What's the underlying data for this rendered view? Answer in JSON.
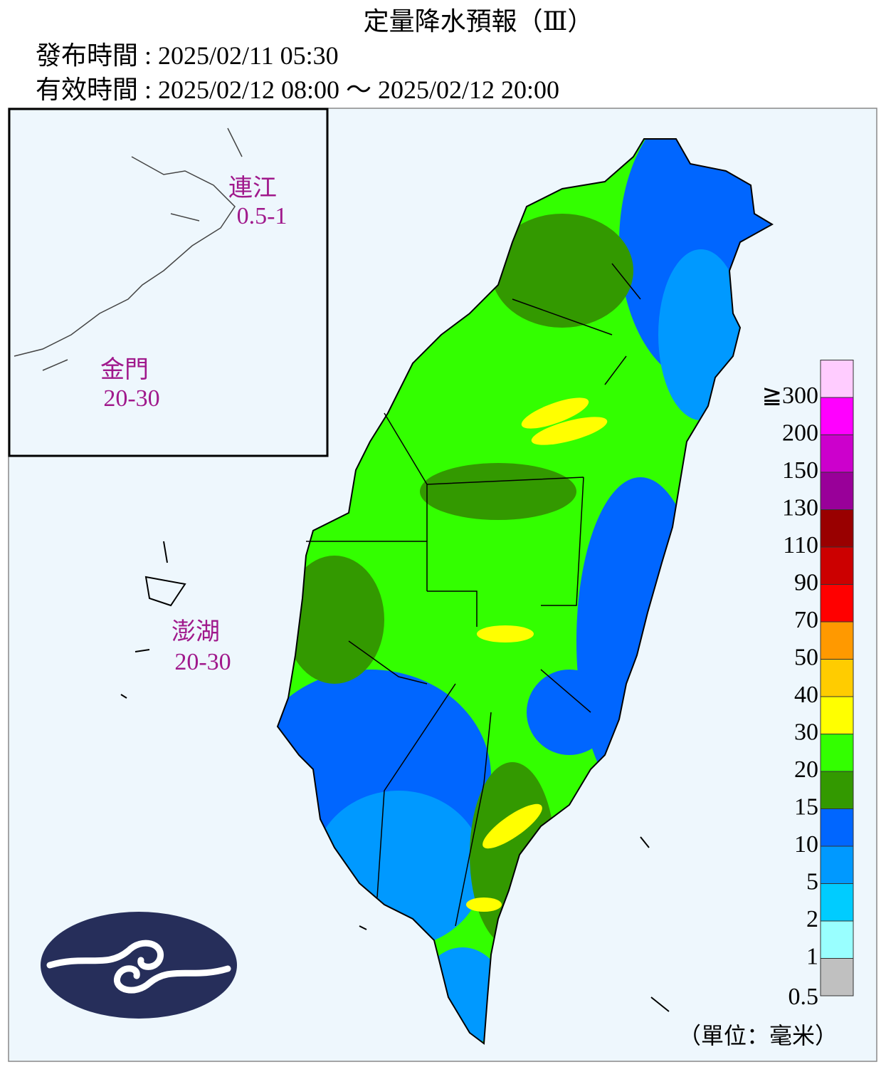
{
  "header": {
    "title": "定量降水預報（Ⅲ）",
    "issue_time": "發布時間 : 2025/02/11 05:30",
    "valid_time": "有效時間 : 2025/02/12 08:00 ～ 2025/02/12 20:00"
  },
  "inset": {
    "labels": [
      {
        "name": "連江",
        "value": "0.5-1"
      },
      {
        "name": "金門",
        "value": "20-30"
      }
    ]
  },
  "map": {
    "labels": [
      {
        "name": "澎湖",
        "value": "20-30"
      }
    ]
  },
  "legend": {
    "labels": [
      0.5,
      1,
      2,
      5,
      10,
      15,
      20,
      30,
      40,
      50,
      70,
      90,
      110,
      130,
      150,
      200,
      "≧300"
    ],
    "colors": [
      "#c0c0c0",
      "#99ffff",
      "#00ccff",
      "#0099ff",
      "#0066ff",
      "#339900",
      "#33ff00",
      "#ffff00",
      "#ffcc00",
      "#ff9900",
      "#ff0000",
      "#cc0000",
      "#990000",
      "#990099",
      "#cc00cc",
      "#ff00ff",
      "#ffccff"
    ],
    "unit": "（單位：毫米）"
  }
}
